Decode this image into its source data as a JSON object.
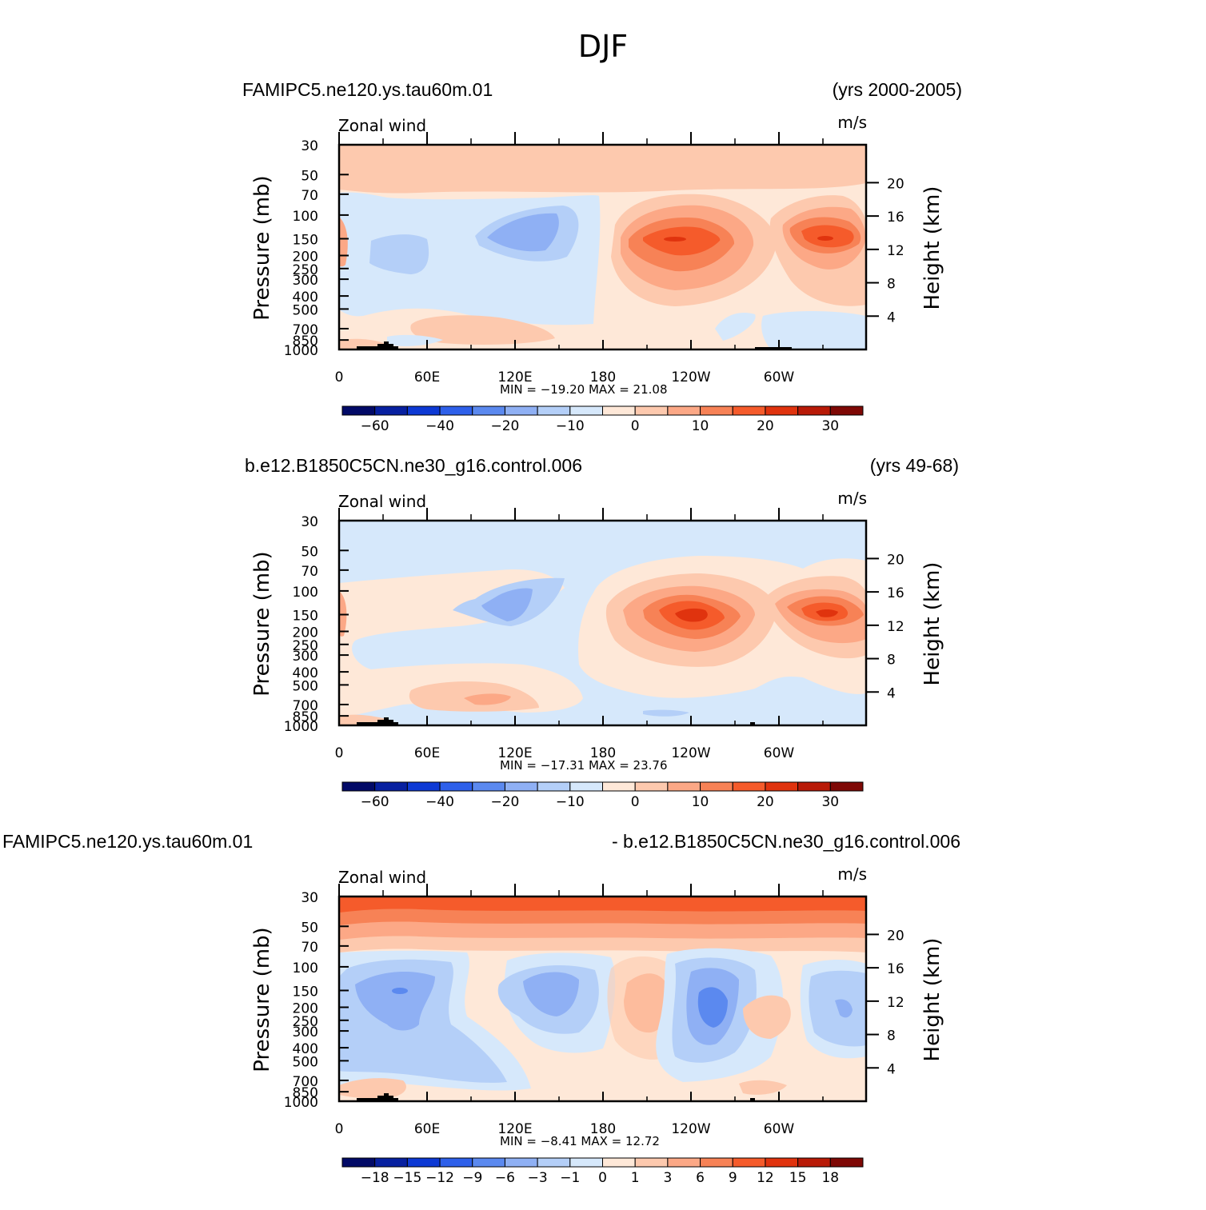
{
  "figure_title": "DJF",
  "colors": {
    "warm": [
      "#fee8d8",
      "#fdc9ae",
      "#fca886",
      "#f78256",
      "#f55b2b",
      "#e0330e",
      "#b81a07",
      "#7e0805"
    ],
    "cool": [
      "#d6e8fb",
      "#b4cff8",
      "#8fb0f4",
      "#5b89ef",
      "#2e60ea",
      "#0d39d4",
      "#0720a0",
      "#020a67"
    ],
    "topo": "#000000"
  },
  "chart_data": [
    {
      "type": "heatmap",
      "left_title": "FAMIPC5.ne120.ys.tau60m.01",
      "right_title": "(yrs 2000-2005)",
      "variable": "Zonal wind",
      "units": "m/s",
      "ylabel": "Pressure (mb)",
      "ylabel_right": "Height (km)",
      "x_ticks": [
        "0",
        "60E",
        "120E",
        "180",
        "120W",
        "60W"
      ],
      "y_ticks": [
        "30",
        "50",
        "70",
        "100",
        "150",
        "200",
        "250",
        "300",
        "400",
        "500",
        "700",
        "850",
        "1000"
      ],
      "y_right_ticks": [
        "20",
        "16",
        "12",
        "8",
        "4"
      ],
      "stats": "MIN = −19.20   MAX =  21.08",
      "colorbar_labels": [
        "−60",
        "−40",
        "−20",
        "−10",
        "0",
        "10",
        "20",
        "30"
      ],
      "min": -19.2,
      "max": 21.08,
      "features": [
        {
          "lon": 120,
          "p": 140,
          "value": -18
        },
        {
          "lon": 35,
          "p": 220,
          "value": -10
        },
        {
          "lon": 228,
          "p": 155,
          "value": 21
        },
        {
          "lon": 330,
          "p": 155,
          "value": 20
        },
        {
          "lon": 110,
          "p": 750,
          "value": 6
        }
      ]
    },
    {
      "type": "heatmap",
      "left_title": "b.e12.B1850C5CN.ne30_g16.control.006",
      "right_title": "(yrs 49-68)",
      "variable": "Zonal wind",
      "units": "m/s",
      "ylabel": "Pressure (mb)",
      "ylabel_right": "Height (km)",
      "x_ticks": [
        "0",
        "60E",
        "120E",
        "180",
        "120W",
        "60W"
      ],
      "y_ticks": [
        "30",
        "50",
        "70",
        "100",
        "150",
        "200",
        "250",
        "300",
        "400",
        "500",
        "700",
        "850",
        "1000"
      ],
      "y_right_ticks": [
        "20",
        "16",
        "12",
        "8",
        "4"
      ],
      "stats": "MIN = −17.31   MAX =  23.76",
      "colorbar_labels": [
        "−60",
        "−40",
        "−20",
        "−10",
        "0",
        "10",
        "20",
        "30"
      ],
      "min": -17.31,
      "max": 23.76,
      "features": [
        {
          "lon": 110,
          "p": 150,
          "value": -17
        },
        {
          "lon": 245,
          "p": 160,
          "value": 23.8
        },
        {
          "lon": 330,
          "p": 160,
          "value": 21
        },
        {
          "lon": 100,
          "p": 800,
          "value": 7
        }
      ]
    },
    {
      "type": "heatmap",
      "left_title": "FAMIPC5.ne120.ys.tau60m.01",
      "right_title": "- b.e12.B1850C5CN.ne30_g16.control.006",
      "variable": "Zonal wind",
      "units": "m/s",
      "ylabel": "Pressure (mb)",
      "ylabel_right": "Height (km)",
      "x_ticks": [
        "0",
        "60E",
        "120E",
        "180",
        "120W",
        "60W"
      ],
      "y_ticks": [
        "30",
        "50",
        "70",
        "100",
        "150",
        "200",
        "250",
        "300",
        "400",
        "500",
        "700",
        "850",
        "1000"
      ],
      "y_right_ticks": [
        "20",
        "16",
        "12",
        "8",
        "4"
      ],
      "stats": "MIN =   −8.41   MAX =  12.72",
      "colorbar_labels": [
        "−18",
        "−15",
        "−12",
        "−9",
        "−6",
        "−3",
        "−1",
        "0",
        "1",
        "3",
        "6",
        "9",
        "12",
        "15",
        "18"
      ],
      "min": -8.41,
      "max": 12.72,
      "features": [
        {
          "lon": 45,
          "p": 150,
          "value": -8
        },
        {
          "lon": 150,
          "p": 160,
          "value": -7
        },
        {
          "lon": 255,
          "p": 200,
          "value": -8.4
        },
        {
          "lon": 205,
          "p": 220,
          "value": 4
        },
        {
          "lon": 345,
          "p": 220,
          "value": -5
        },
        {
          "lon": 180,
          "p": 35,
          "value": 12.7
        }
      ]
    }
  ]
}
